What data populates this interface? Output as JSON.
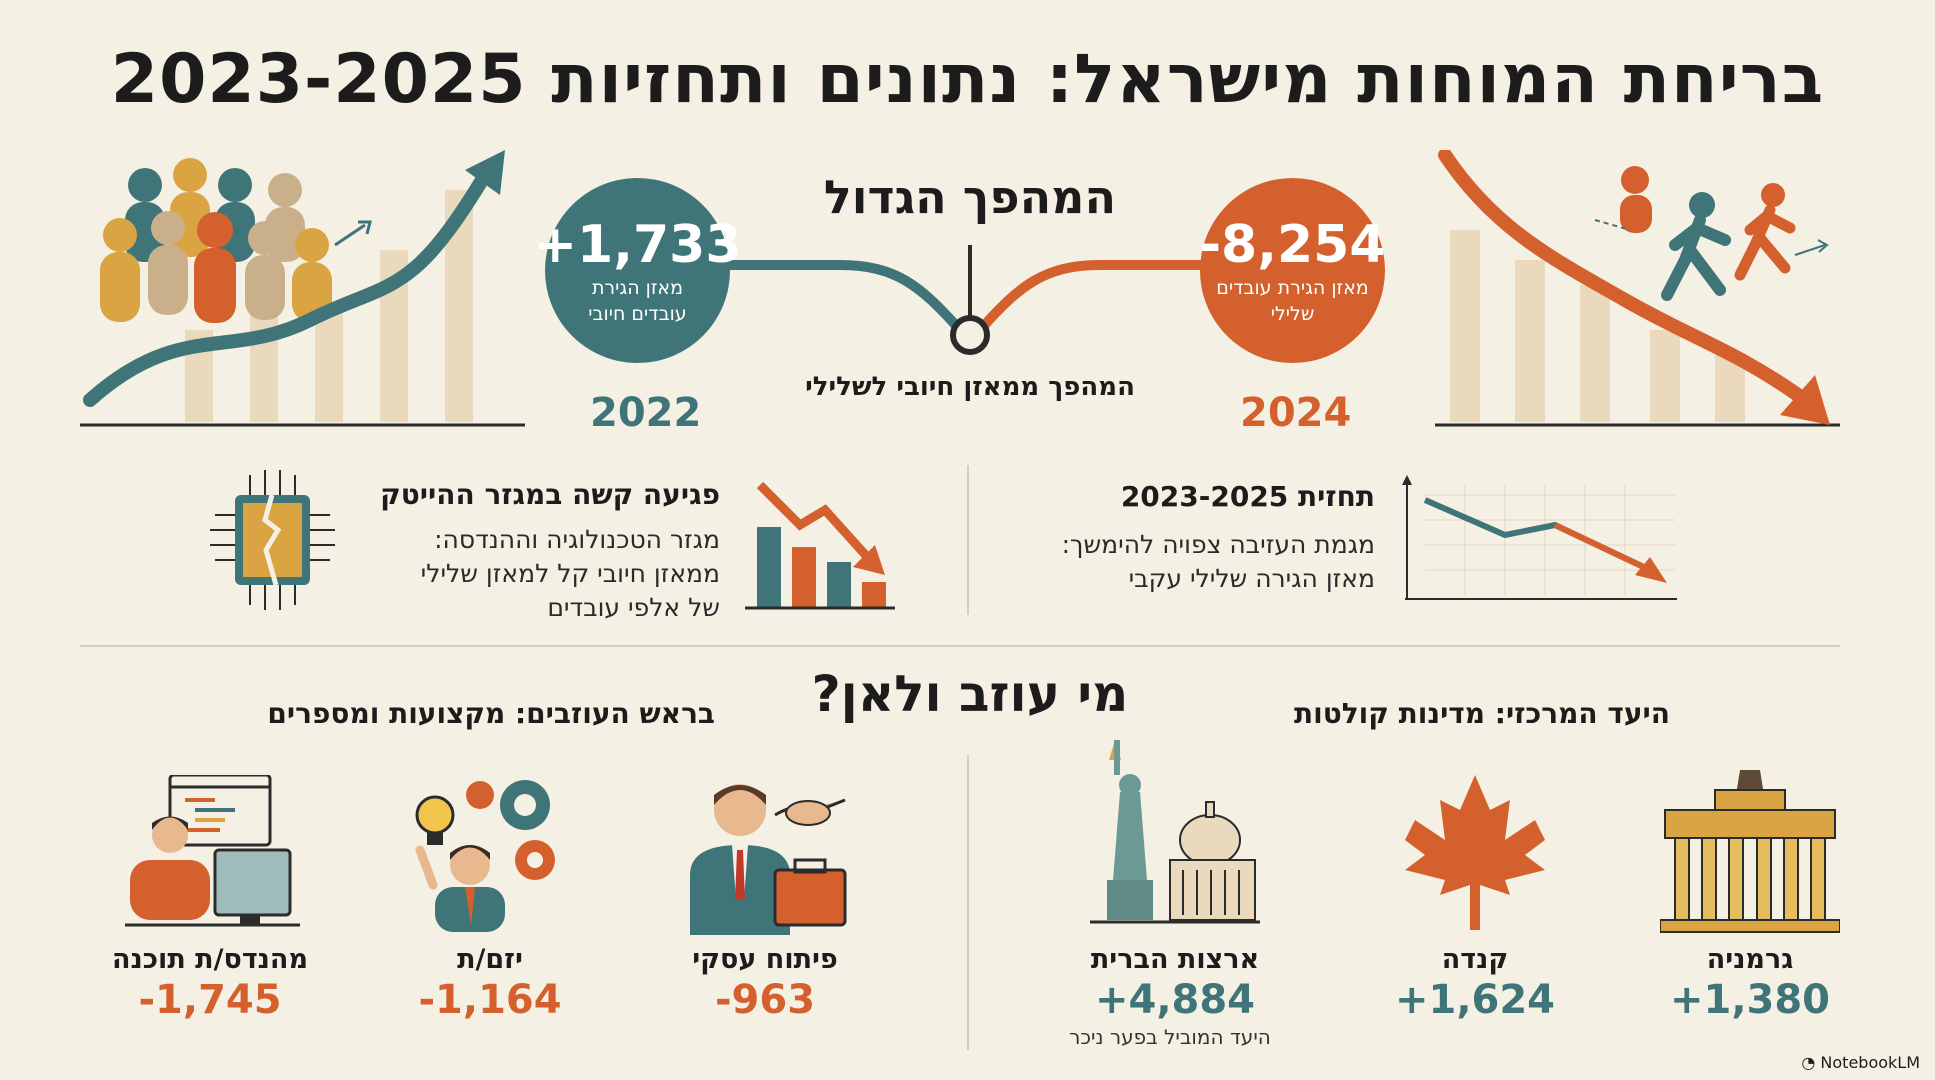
{
  "title": "בריחת המוחות מישראל: נתונים ותחזיות 2023-2025",
  "big_shift": {
    "heading": "המהפך הגדול",
    "caption": "המהפך ממאזן חיובי לשלילי",
    "left": {
      "value": "+1,733",
      "label_line1": "מאזן הגירת",
      "label_line2": "עובדים חיובי",
      "year": "2022"
    },
    "right": {
      "value": "-8,254",
      "label_line1": "מאזן הגירת עובדים",
      "label_line2": "שלילי",
      "year": "2024"
    }
  },
  "hitech": {
    "heading": "פגיעה קשה במגזר ההייטק",
    "line1": "מגזר הטכנולוגיה וההנדסה:",
    "line2": "ממאזן חיובי קל למאזן שלילי",
    "line3": "של אלפי עובדים"
  },
  "forecast": {
    "heading": "תחזית 2023-2025",
    "line1": "מגמת העזיבה צפויה להימשך:",
    "line2": "מאזן הגירה שלילי עקבי"
  },
  "who_leaves": {
    "heading": "מי עוזב ולאן?",
    "professions_heading": "בראש העוזבים: מקצועות ומספרים",
    "destinations_heading": "היעד המרכזי: מדינות קולטות",
    "professions": [
      {
        "label": "מהנדס/ת תוכנה",
        "value": "-1,745"
      },
      {
        "label": "יזם/ת",
        "value": "-1,164"
      },
      {
        "label": "פיתוח עסקי",
        "value": "-963"
      }
    ],
    "destinations": [
      {
        "label": "ארצות הברית",
        "value": "+4,884",
        "note": "היעד המוביל בפער ניכר"
      },
      {
        "label": "קנדה",
        "value": "+1,624"
      },
      {
        "label": "גרמניה",
        "value": "+1,380"
      }
    ]
  },
  "watermark": "NotebookLM",
  "colors": {
    "teal": "#3f7478",
    "orange": "#d4612d",
    "background": "#f5f0e4",
    "tan": "#ead9bc",
    "gold": "#d9a441"
  }
}
